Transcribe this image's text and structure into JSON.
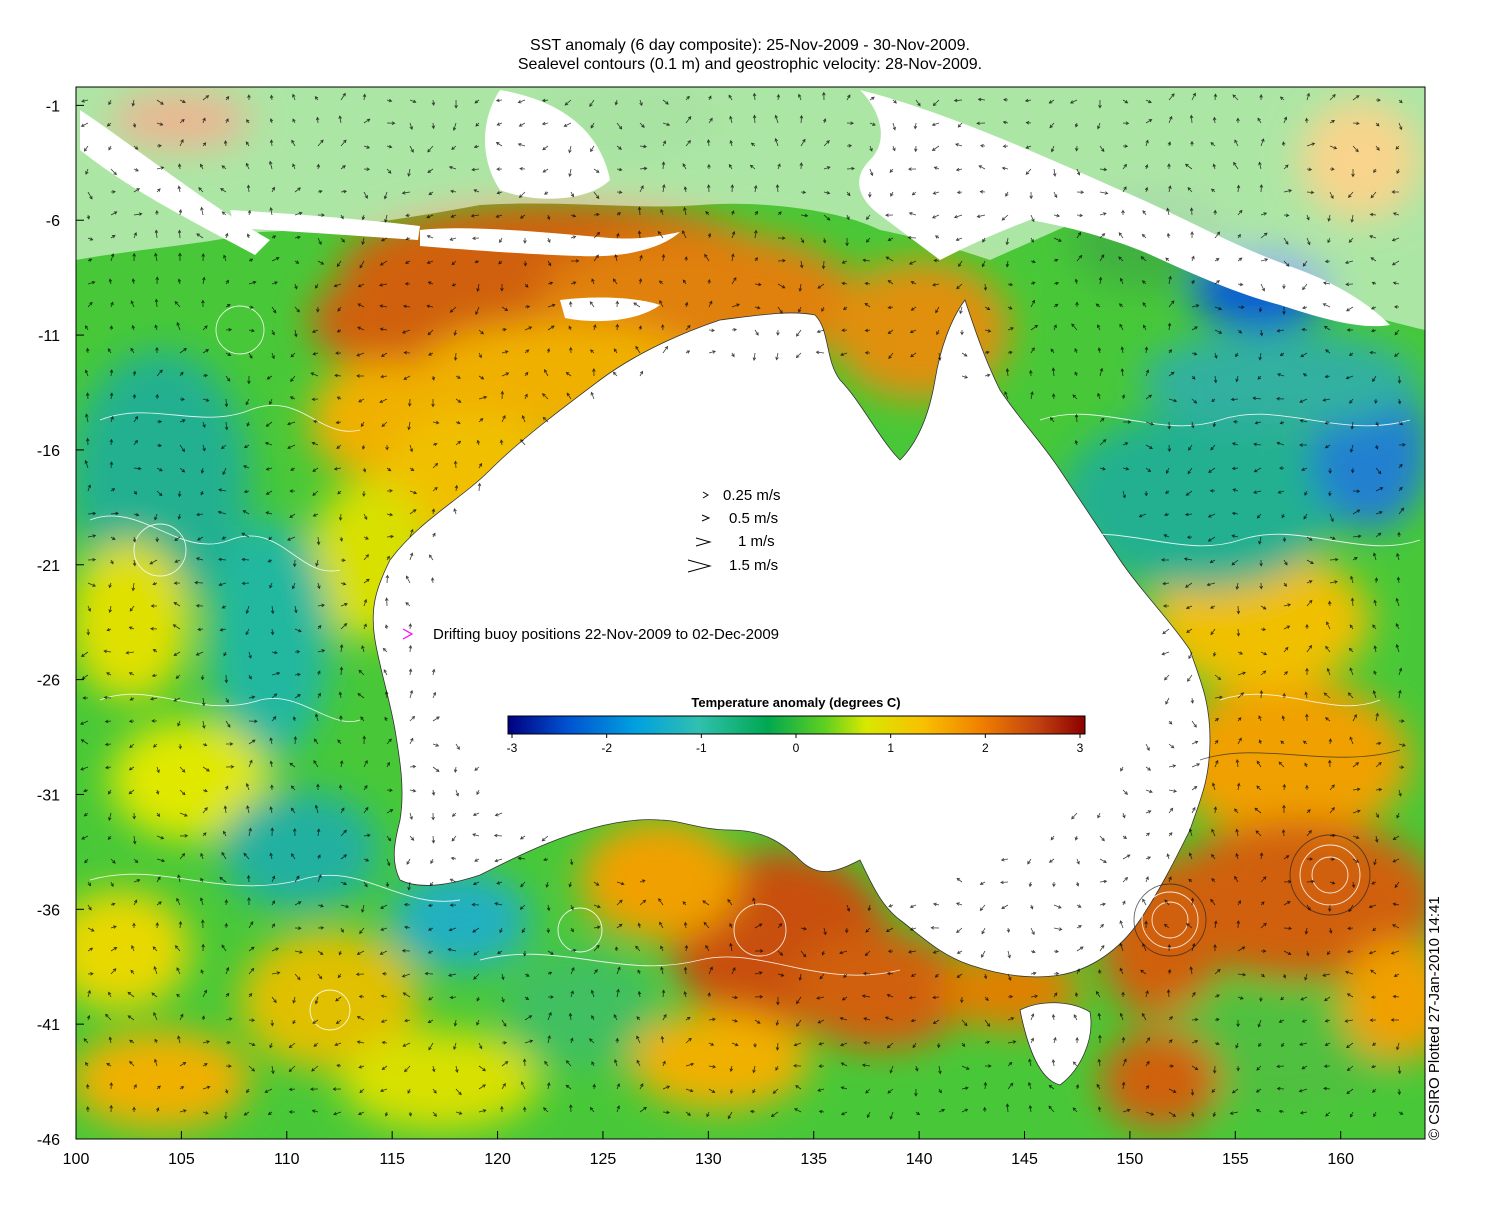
{
  "title_line1": "SST anomaly (6 day composite): 25-Nov-2009 - 30-Nov-2009.",
  "title_line2": "Sealevel contours (0.1 m) and geostrophic velocity: 28-Nov-2009.",
  "colorbar": {
    "title": "Temperature anomaly (degrees C)",
    "ticks": [
      "-3",
      "-2",
      "-1",
      "0",
      "1",
      "2",
      "3"
    ],
    "range": [
      -3,
      3
    ],
    "colors": [
      "#000080",
      "#0050d0",
      "#00a0e0",
      "#30c0b0",
      "#00a850",
      "#40c830",
      "#c8e000",
      "#f0f000",
      "#f8c000",
      "#f08000",
      "#d05010",
      "#900000"
    ]
  },
  "velocity_legend": [
    {
      "label": "0.25 m/s",
      "speed": 0.25
    },
    {
      "label": "0.5 m/s",
      "speed": 0.5
    },
    {
      "label": "1 m/s",
      "speed": 1
    },
    {
      "label": "1.5 m/s",
      "speed": 1.5
    }
  ],
  "buoy_legend": {
    "label": "Drifting buoy positions 22-Nov-2009 to 02-Dec-2009",
    "color": "#ff00ff"
  },
  "credit": "© CSIRO Plotted 27-Jan-2010 14:41",
  "axes": {
    "x_ticks": [
      "100",
      "105",
      "110",
      "115",
      "120",
      "125",
      "130",
      "135",
      "140",
      "145",
      "150",
      "155",
      "160"
    ],
    "y_ticks": [
      "-1",
      "-6",
      "-11",
      "-16",
      "-21",
      "-26",
      "-31",
      "-36",
      "-41",
      "-46"
    ],
    "x_range": [
      100,
      164
    ],
    "y_range": [
      -46,
      -0.2
    ]
  },
  "land_color": "#ffffff",
  "ocean_base_color": "#40c830"
}
